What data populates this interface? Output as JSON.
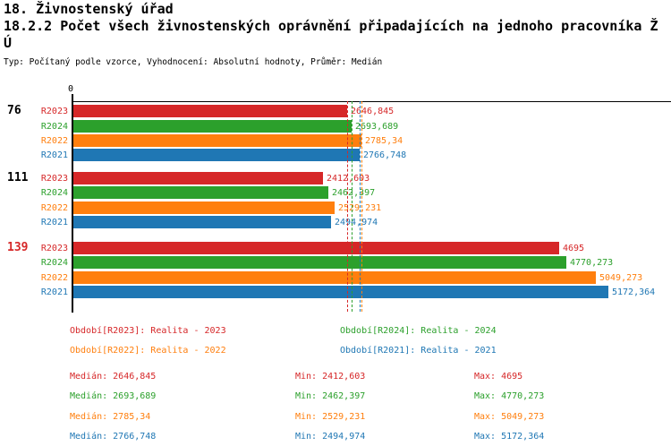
{
  "header": {
    "line1": "18. Živnostenský úřad",
    "line2": "18.2.2 Počet všech živnostenských oprávnění připadajících na jednoho pracovníka Ž",
    "line3": "Ú",
    "meta": "Typ: Počítaný podle vzorce, Vyhodnocení: Absolutní hodnoty, Průměr: Medián"
  },
  "chart_data": {
    "type": "bar",
    "orientation": "horizontal",
    "title": "18.2.2 Počet všech živnostenských oprávnění připadajících na jednoho pracovníka ŽÚ",
    "zero_label": "0",
    "xlim": [
      0,
      5778
    ],
    "grid": false,
    "axis_color": "#000000",
    "series": [
      {
        "name": "R2023",
        "color": "#d62728",
        "median": 2646.845
      },
      {
        "name": "R2024",
        "color": "#2ca02c",
        "median": 2693.689
      },
      {
        "name": "R2022",
        "color": "#ff7f0e",
        "median": 2785.34
      },
      {
        "name": "R2021",
        "color": "#1f77b4",
        "median": 2766.748
      }
    ],
    "groups": [
      {
        "label": "76",
        "label_color": "#000000",
        "values": [
          2646.845,
          2693.689,
          2785.34,
          2766.748
        ],
        "value_labels": [
          "2646,845",
          "2693,689",
          "2785,34",
          "2766,748"
        ]
      },
      {
        "label": "111",
        "label_color": "#000000",
        "values": [
          2412.603,
          2462.397,
          2529.231,
          2494.974
        ],
        "value_labels": [
          "2412,603",
          "2462,397",
          "2529,231",
          "2494,974"
        ]
      },
      {
        "label": "139",
        "label_color": "#d62728",
        "values": [
          4695,
          4770.273,
          5049.273,
          5172.364
        ],
        "value_labels": [
          "4695",
          "4770,273",
          "5049,273",
          "5172,364"
        ]
      }
    ]
  },
  "legend": {
    "items": [
      {
        "text": "Období[R2023]: Realita - 2023",
        "color": "#d62728"
      },
      {
        "text": "Období[R2024]: Realita - 2024",
        "color": "#2ca02c"
      },
      {
        "text": "Období[R2022]: Realita - 2022",
        "color": "#ff7f0e"
      },
      {
        "text": "Období[R2021]: Realita - 2021",
        "color": "#1f77b4"
      }
    ]
  },
  "stats": {
    "rows": [
      {
        "median": "Medián: 2646,845",
        "min": "Min: 2412,603",
        "max": "Max: 4695",
        "color": "#d62728"
      },
      {
        "median": "Medián: 2693,689",
        "min": "Min: 2462,397",
        "max": "Max: 4770,273",
        "color": "#2ca02c"
      },
      {
        "median": "Medián: 2785,34",
        "min": "Min: 2529,231",
        "max": "Max: 5049,273",
        "color": "#ff7f0e"
      },
      {
        "median": "Medián: 2766,748",
        "min": "Min: 2494,974",
        "max": "Max: 5172,364",
        "color": "#1f77b4"
      }
    ]
  }
}
